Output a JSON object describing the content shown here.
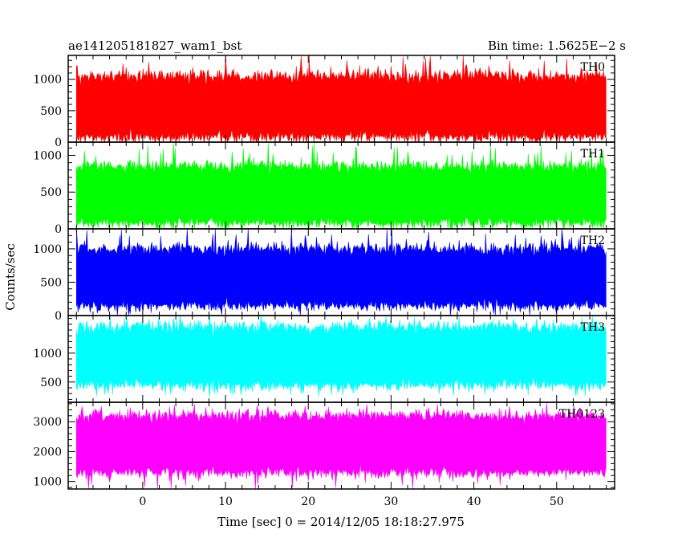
{
  "header": {
    "left_title": "ae141205181827_wam1_bst",
    "right_title": "Bin time: 1.5625E−2 s"
  },
  "chart_data": {
    "type": "line",
    "title": "ae141205181827_wam1_bst",
    "subtitle": "Bin time: 1.5625E−2 s",
    "xlabel": "Time [sec] 0 = 2014/12/05 18:18:27.975",
    "ylabel": "Counts/sec",
    "xlim": [
      -9,
      57
    ],
    "data_range": [
      -8,
      56
    ],
    "x_ticks": [
      0,
      10,
      20,
      30,
      40,
      50
    ],
    "x_tick_labels": [
      "0",
      "10",
      "20",
      "30",
      "40",
      "50"
    ],
    "panels": [
      {
        "name": "TH0",
        "color": "#ff0000",
        "ylim": [
          0,
          1380
        ],
        "y_ticks": [
          0,
          500,
          1000
        ],
        "y_tick_labels": [
          "0",
          "500",
          "1000"
        ],
        "typical_range": [
          80,
          1050
        ],
        "mean": 550,
        "min_spike": 0,
        "max_spike": 1360
      },
      {
        "name": "TH1",
        "color": "#00ff00",
        "ylim": [
          0,
          1180
        ],
        "y_ticks": [
          0,
          500,
          1000
        ],
        "y_tick_labels": [
          "0",
          "500",
          "1000"
        ],
        "typical_range": [
          80,
          850
        ],
        "mean": 440,
        "min_spike": 0,
        "max_spike": 1180
      },
      {
        "name": "TH2",
        "color": "#0000ff",
        "ylim": [
          0,
          1300
        ],
        "y_ticks": [
          0,
          500,
          1000
        ],
        "y_tick_labels": [
          "0",
          "500",
          "1000"
        ],
        "typical_range": [
          150,
          1000
        ],
        "mean": 560,
        "min_spike": 0,
        "max_spike": 1300
      },
      {
        "name": "TH3",
        "color": "#00ffff",
        "ylim": [
          150,
          1650
        ],
        "y_ticks": [
          500,
          1000
        ],
        "y_tick_labels": [
          "500",
          "1000"
        ],
        "typical_range": [
          450,
          1450
        ],
        "mean": 930,
        "min_spike": 250,
        "max_spike": 1650
      },
      {
        "name": "TH0123",
        "color": "#ff00ff",
        "ylim": [
          750,
          3650
        ],
        "y_ticks": [
          1000,
          2000,
          3000
        ],
        "y_tick_labels": [
          "1000",
          "2000",
          "3000"
        ],
        "typical_range": [
          1300,
          3200
        ],
        "mean": 2300,
        "min_spike": 750,
        "max_spike": 3600
      }
    ]
  }
}
